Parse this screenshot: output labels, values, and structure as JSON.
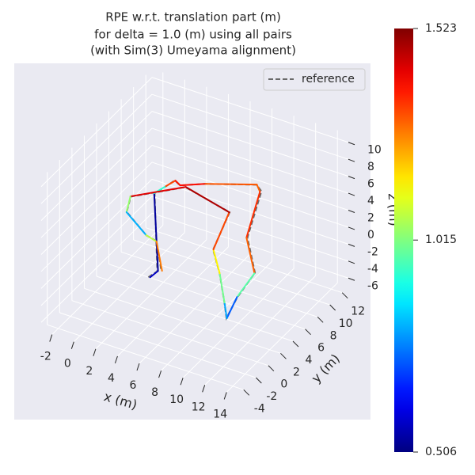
{
  "chart_data": {
    "type": "line3d",
    "title": [
      "RPE w.r.t. translation part (m)",
      "for delta = 1.0 (m) using all pairs",
      "(with Sim(3) Umeyama alignment)"
    ],
    "xlabel": "x (m)",
    "ylabel": "y (m)",
    "zlabel": "z (m)",
    "xlim": [
      -3,
      15
    ],
    "ylim": [
      -5,
      13
    ],
    "zlim": [
      -7,
      11
    ],
    "xticks": [
      -2,
      0,
      2,
      4,
      6,
      8,
      10,
      12,
      14
    ],
    "yticks": [
      -4,
      -2,
      0,
      2,
      4,
      6,
      8,
      10,
      12
    ],
    "zticks": [
      -6,
      -4,
      -2,
      0,
      2,
      4,
      6,
      8,
      10
    ],
    "grid": true,
    "legend_loc": "upper right",
    "series": [
      {
        "name": "reference",
        "color": "#696969",
        "linestyle": "dashed",
        "x": [
          1.8,
          2.0,
          1.7,
          2.0,
          2.2,
          2.9,
          4.5,
          8.1,
          8.9,
          8.8,
          10.0,
          9.9,
          10.6,
          9.4,
          7.6,
          6.1,
          7.0,
          3.4,
          0.3,
          0.5,
          2.3,
          3.4,
          4.0
        ],
        "y": [
          3.9,
          5.0,
          5.1,
          6.4,
          7.5,
          7.1,
          8.3,
          10.3,
          9.7,
          7.6,
          6.7,
          4.0,
          1.0,
          2.8,
          5.2,
          6.8,
          7.9,
          7.1,
          3.7,
          2.7,
          2.7,
          2.4,
          2.1
        ],
        "z": [
          -5,
          -5,
          4,
          4,
          4,
          4,
          4,
          4,
          4,
          0,
          -3,
          -4,
          -4,
          -4,
          -3,
          -2,
          2,
          4,
          4,
          3,
          1,
          1,
          -2
        ]
      },
      {
        "color_by": "error",
        "x": [
          1.93,
          2.03,
          1.67,
          1.99,
          2.25,
          2.91,
          4.54,
          8.12,
          8.83,
          8.74,
          10.0,
          9.86,
          10.64,
          9.38,
          7.61,
          6.11,
          6.97,
          3.4,
          0.26,
          0.5,
          2.27,
          3.42,
          4.07
        ],
        "y": [
          3.97,
          5.07,
          5.08,
          6.43,
          7.5,
          7.11,
          8.33,
          10.33,
          9.58,
          7.55,
          6.62,
          4.03,
          0.99,
          2.84,
          5.2,
          6.83,
          7.88,
          7.14,
          3.72,
          2.66,
          2.72,
          2.36,
          2.11
        ],
        "z": [
          -5,
          -5,
          4,
          4,
          4,
          4,
          4,
          4,
          4,
          0,
          -3,
          -4,
          -4,
          -4,
          -3,
          -2,
          2,
          4,
          4,
          3,
          1,
          1,
          -2
        ],
        "error": [
          0.6,
          0.55,
          0.52,
          1.35,
          1.3,
          1.45,
          1.32,
          1.3,
          1.3,
          1.4,
          1.2,
          0.75,
          0.7,
          0.9,
          1.1,
          1.2,
          1.45,
          1.5,
          1.35,
          0.72,
          0.9,
          1.25,
          1.3
        ]
      }
    ],
    "colorbar": {
      "colormap": "jet",
      "clim": [
        0.506,
        1.523
      ],
      "ticks": [
        0.506,
        1.015,
        1.523
      ]
    }
  }
}
